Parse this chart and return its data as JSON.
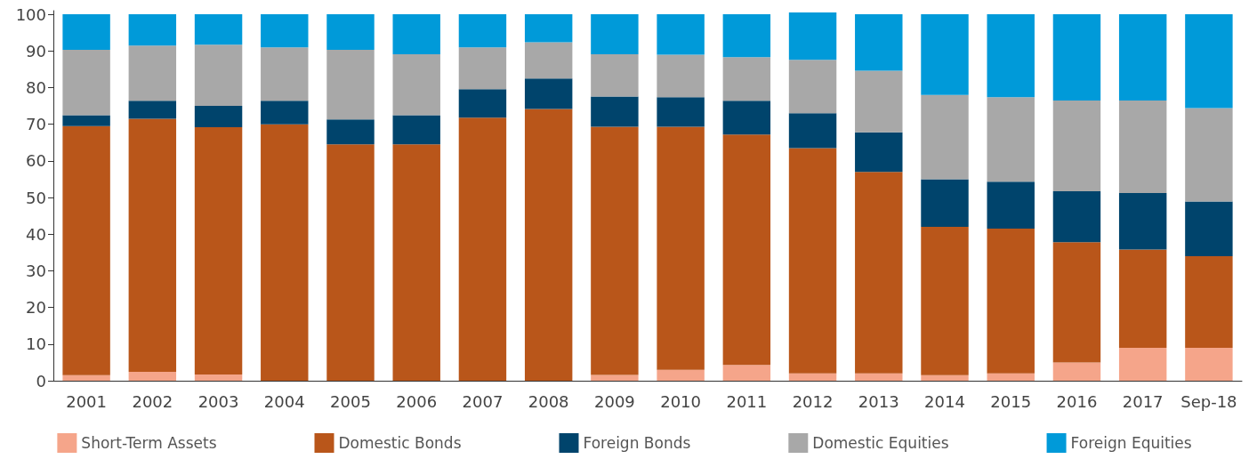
{
  "chart_data": {
    "type": "bar",
    "stacked": true,
    "categories": [
      "2001",
      "2002",
      "2003",
      "2004",
      "2005",
      "2006",
      "2007",
      "2008",
      "2009",
      "2010",
      "2011",
      "2012",
      "2013",
      "2014",
      "2015",
      "2016",
      "2017",
      "Sep-18"
    ],
    "series": [
      {
        "name": "Short-Term Assets",
        "color": "#f5a58a",
        "values": [
          1.5,
          2.4,
          1.7,
          0,
          0,
          0,
          0,
          0,
          1.6,
          3,
          4.3,
          2,
          2,
          1.5,
          2,
          5,
          9,
          9
        ]
      },
      {
        "name": "Domestic Bonds",
        "color": "#b9561a",
        "values": [
          68,
          69.1,
          67.5,
          70,
          64.5,
          64.5,
          71.8,
          74.2,
          67.7,
          66.3,
          62.9,
          61.5,
          55,
          40.5,
          39.5,
          32.8,
          26.8,
          25
        ]
      },
      {
        "name": "Foreign Bonds",
        "color": "#00446c",
        "values": [
          3,
          4.9,
          5.8,
          6.4,
          6.8,
          8,
          7.8,
          8.3,
          8.3,
          8.1,
          9.2,
          9.5,
          10.8,
          13,
          12.8,
          13.9,
          15.4,
          14.9
        ]
      },
      {
        "name": "Domestic Equities",
        "color": "#a8a8a8",
        "values": [
          17.8,
          15.1,
          16.7,
          14.6,
          19,
          16.6,
          11.4,
          9.9,
          11.5,
          11.6,
          11.9,
          14.6,
          16.8,
          23,
          23.1,
          24.8,
          25.3,
          25.5
        ]
      },
      {
        "name": "Foreign Equities",
        "color": "#009ad9",
        "values": [
          9.7,
          8.5,
          8.3,
          9,
          9.7,
          10.9,
          9,
          7.6,
          10.9,
          11,
          11.7,
          12.9,
          15.4,
          22,
          22.6,
          23.5,
          23.5,
          25.6
        ]
      }
    ],
    "ylim": [
      0,
      101
    ],
    "yticks": [
      0,
      10,
      20,
      30,
      40,
      50,
      60,
      70,
      80,
      90,
      100
    ],
    "grid": false,
    "legend": "bottom"
  }
}
